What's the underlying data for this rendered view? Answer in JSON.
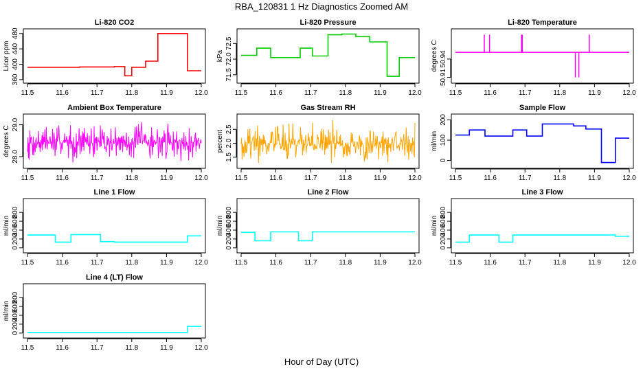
{
  "figure": {
    "title": "RBA_120831  1 Hz Diagnostics Zoomed AM",
    "xlabel": "Hour of Day (UTC)"
  },
  "chart_data": [
    {
      "type": "line",
      "title": "Li-820 CO2",
      "ylabel": "Licor ppm",
      "color": "#ff0000",
      "xlim": [
        11.5,
        12.0
      ],
      "xticks": [
        11.5,
        11.6,
        11.7,
        11.8,
        11.9,
        12.0
      ],
      "xtick_labels": [
        "11.5",
        "11.6",
        "11.7",
        "11.8",
        "11.9",
        "12.0"
      ],
      "ylim": [
        358,
        485
      ],
      "yticks": [
        360,
        400,
        440,
        480
      ],
      "ytick_labels": [
        "360",
        "400",
        "440",
        "480"
      ],
      "style": "step",
      "x": [
        11.5,
        11.6,
        11.65,
        11.7,
        11.75,
        11.78,
        11.8,
        11.84,
        11.875,
        11.96,
        12.0
      ],
      "y": [
        392,
        392,
        393,
        393,
        394,
        370,
        392,
        408,
        480,
        383,
        383
      ]
    },
    {
      "type": "line",
      "title": "Li-820 Pressure",
      "ylabel": "kPa",
      "color": "#00cc00",
      "xlim": [
        11.5,
        12.0
      ],
      "xticks": [
        11.5,
        11.6,
        11.7,
        11.8,
        11.9,
        12.0
      ],
      "xtick_labels": [
        "11.5",
        "11.6",
        "11.7",
        "11.8",
        "11.9",
        "12.0"
      ],
      "ylim": [
        71.32,
        72.88
      ],
      "yticks": [
        71.5,
        72.0,
        72.5
      ],
      "ytick_labels": [
        "71.5",
        "72.0",
        "72.5"
      ],
      "style": "step",
      "x": [
        11.5,
        11.545,
        11.585,
        11.67,
        11.705,
        11.75,
        11.79,
        11.83,
        11.87,
        11.92,
        11.955,
        12.0
      ],
      "y": [
        72.12,
        72.35,
        72.05,
        72.35,
        72.1,
        72.78,
        72.8,
        72.72,
        72.55,
        71.45,
        72.05,
        72.05
      ]
    },
    {
      "type": "line",
      "title": "Li-820 Temperature",
      "ylabel": "degrees C",
      "color": "#ff00ff",
      "xlim": [
        11.5,
        12.0
      ],
      "xticks": [
        11.5,
        11.6,
        11.7,
        11.8,
        11.9,
        12.0
      ],
      "xtick_labels": [
        "11.5",
        "11.6",
        "11.7",
        "11.8",
        "11.9",
        "12.0"
      ],
      "ylim": [
        50.905,
        50.985
      ],
      "yticks": [
        50.91,
        50.94
      ],
      "ytick_labels": [
        "50.91",
        "50.94"
      ],
      "style": "spikes",
      "baseline": 50.951,
      "spike_x": [
        11.583,
        11.598,
        11.69,
        11.692,
        11.845,
        11.855,
        11.885
      ],
      "spike_y": [
        50.98,
        50.98,
        50.98,
        50.98,
        50.91,
        50.91,
        50.98
      ]
    },
    {
      "type": "line",
      "title": "Ambient Box Temperature",
      "ylabel": "degrees C",
      "color": "#ff00ff",
      "xlim": [
        11.5,
        12.0
      ],
      "xticks": [
        11.5,
        11.6,
        11.7,
        11.8,
        11.9,
        12.0
      ],
      "xtick_labels": [
        "11.5",
        "11.6",
        "11.7",
        "11.8",
        "11.9",
        "12.0"
      ],
      "ylim": [
        27.72,
        29.25
      ],
      "yticks": [
        28.0,
        29.0
      ],
      "ytick_labels": [
        "28.0",
        "29.0"
      ],
      "style": "noise",
      "center": 28.45,
      "spread_low": 0.65,
      "spread_high": 0.75,
      "seed": 7
    },
    {
      "type": "line",
      "title": "Gas Stream RH",
      "ylabel": "percent",
      "color": "#ffa500",
      "xlim": [
        11.5,
        12.0
      ],
      "xticks": [
        11.5,
        11.6,
        11.7,
        11.8,
        11.9,
        12.0
      ],
      "xtick_labels": [
        "11.5",
        "11.6",
        "11.7",
        "11.8",
        "11.9",
        "12.0"
      ],
      "ylim": [
        1.2,
        2.95
      ],
      "yticks": [
        1.5,
        2.0,
        2.5
      ],
      "ytick_labels": [
        "1.5",
        "2.0",
        "2.5"
      ],
      "style": "noise",
      "center": 1.98,
      "spread_low": 0.75,
      "spread_high": 0.9,
      "seed": 19
    },
    {
      "type": "line",
      "title": "Sample Flow",
      "ylabel": "ml/min",
      "color": "#0000ff",
      "xlim": [
        11.5,
        12.0
      ],
      "xticks": [
        11.5,
        11.6,
        11.7,
        11.8,
        11.9,
        12.0
      ],
      "xtick_labels": [
        "11.5",
        "11.6",
        "11.7",
        "11.8",
        "11.9",
        "12.0"
      ],
      "ylim": [
        -25,
        215
      ],
      "yticks": [
        0,
        100,
        200
      ],
      "ytick_labels": [
        "0",
        "100",
        "200"
      ],
      "style": "step",
      "x": [
        11.5,
        11.54,
        11.585,
        11.665,
        11.705,
        11.75,
        11.84,
        11.875,
        11.92,
        11.96,
        12.0
      ],
      "y": [
        125,
        150,
        120,
        150,
        120,
        180,
        170,
        155,
        -10,
        110,
        110
      ]
    },
    {
      "type": "line",
      "title": "Line 1 Flow",
      "ylabel": "ml/min",
      "color": "#00ffff",
      "xlim": [
        11.5,
        12.0
      ],
      "xticks": [
        11.5,
        11.6,
        11.7,
        11.8,
        11.9,
        12.0
      ],
      "xtick_labels": [
        "11.5",
        "11.6",
        "11.7",
        "11.8",
        "11.9",
        "12.0"
      ],
      "ylim": [
        -50,
        1050
      ],
      "yticks": [
        0,
        200,
        400,
        600,
        800
      ],
      "ytick_labels": [
        "0",
        "200",
        "400",
        "600",
        "800"
      ],
      "style": "step",
      "x": [
        11.5,
        11.58,
        11.625,
        11.71,
        11.75,
        11.96,
        12.0
      ],
      "y": [
        290,
        130,
        300,
        140,
        130,
        270,
        270
      ]
    },
    {
      "type": "line",
      "title": "Line 2 Flow",
      "ylabel": "ml/min",
      "color": "#00ffff",
      "xlim": [
        11.5,
        12.0
      ],
      "xticks": [
        11.5,
        11.6,
        11.7,
        11.8,
        11.9,
        12.0
      ],
      "xtick_labels": [
        "11.5",
        "11.6",
        "11.7",
        "11.8",
        "11.9",
        "12.0"
      ],
      "ylim": [
        -50,
        1050
      ],
      "yticks": [
        0,
        200,
        400,
        600,
        800
      ],
      "ytick_labels": [
        "0",
        "200",
        "400",
        "600",
        "800"
      ],
      "style": "step",
      "x": [
        11.5,
        11.54,
        11.585,
        11.665,
        11.705,
        12.0
      ],
      "y": [
        350,
        160,
        360,
        160,
        360,
        340
      ]
    },
    {
      "type": "line",
      "title": "Line 3 Flow",
      "ylabel": "ml/min",
      "color": "#00ffff",
      "xlim": [
        11.5,
        12.0
      ],
      "xticks": [
        11.5,
        11.6,
        11.7,
        11.8,
        11.9,
        12.0
      ],
      "xtick_labels": [
        "11.5",
        "11.6",
        "11.7",
        "11.8",
        "11.9",
        "12.0"
      ],
      "ylim": [
        -50,
        1050
      ],
      "yticks": [
        0,
        200,
        400,
        600,
        800
      ],
      "ytick_labels": [
        "0",
        "200",
        "400",
        "600",
        "800"
      ],
      "style": "step",
      "x": [
        11.5,
        11.54,
        11.625,
        11.665,
        11.96,
        12.0
      ],
      "y": [
        130,
        290,
        130,
        290,
        260,
        260
      ]
    },
    {
      "type": "line",
      "title": "Line 4 (LT) Flow",
      "ylabel": "ml/min",
      "color": "#00ffff",
      "xlim": [
        11.5,
        12.0
      ],
      "xticks": [
        11.5,
        11.6,
        11.7,
        11.8,
        11.9,
        12.0
      ],
      "xtick_labels": [
        "11.5",
        "11.6",
        "11.7",
        "11.8",
        "11.9",
        "12.0"
      ],
      "ylim": [
        -50,
        1050
      ],
      "yticks": [
        0,
        200,
        400,
        600,
        800
      ],
      "ytick_labels": [
        "0",
        "200",
        "400",
        "600",
        "800"
      ],
      "style": "step",
      "x": [
        11.5,
        11.96,
        12.0
      ],
      "y": [
        10,
        150,
        150
      ]
    }
  ]
}
